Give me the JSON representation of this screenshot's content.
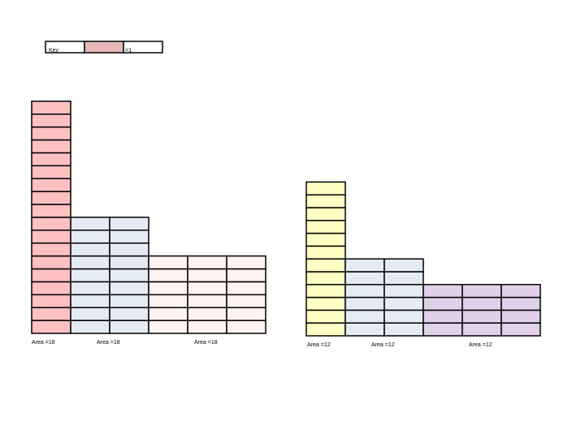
{
  "key": {
    "label": "Key",
    "value_text": "=1",
    "swatch_color": "#E6B9B8"
  },
  "groups": [
    {
      "name": "left",
      "columns": [
        {
          "cells": 18,
          "color": "#FFC0C0"
        },
        {
          "cells": 9,
          "color": "#E4EBF5"
        },
        {
          "cells": 9,
          "color": "#E4EBF5"
        },
        {
          "cells": 6,
          "color": "#FFF3F1"
        },
        {
          "cells": 6,
          "color": "#FFF3F1"
        },
        {
          "cells": 6,
          "color": "#FFF3F1"
        }
      ],
      "area_labels": [
        "Area =18",
        "Area =18",
        "Area =18"
      ]
    },
    {
      "name": "right",
      "columns": [
        {
          "cells": 12,
          "color": "#FFFFC4"
        },
        {
          "cells": 6,
          "color": "#E4EBF5"
        },
        {
          "cells": 6,
          "color": "#E4EBF5"
        },
        {
          "cells": 4,
          "color": "#E0D0E8"
        },
        {
          "cells": 4,
          "color": "#E0D0E8"
        },
        {
          "cells": 4,
          "color": "#E0D0E8"
        }
      ],
      "area_labels": [
        "Area =12",
        "Area =12",
        "Area =12"
      ]
    }
  ]
}
